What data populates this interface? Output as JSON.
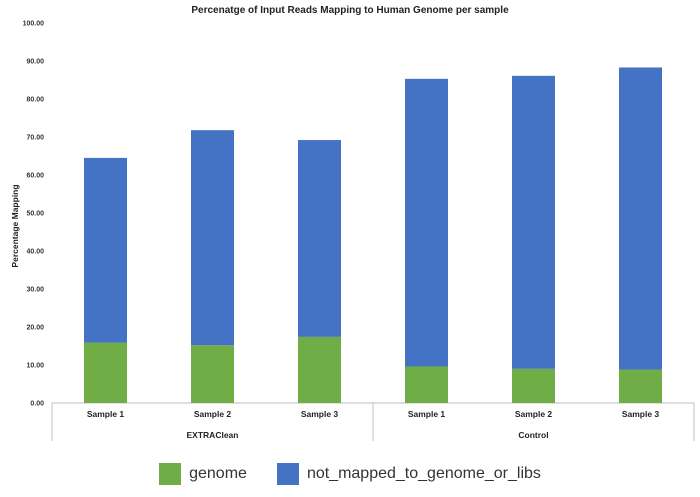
{
  "chart_data": {
    "type": "bar",
    "stacked": true,
    "title": "Percenatge of Input Reads Mapping to Human Genome per sample",
    "ylabel": "Percentage Mapping",
    "xlabel": "",
    "ylim": [
      0,
      100
    ],
    "yticks": [
      "0.00",
      "10.00",
      "20.00",
      "30.00",
      "40.00",
      "50.00",
      "60.00",
      "70.00",
      "80.00",
      "90.00",
      "100.00"
    ],
    "groups": [
      {
        "label": "EXTRAClean",
        "categories": [
          "Sample 1",
          "Sample 2",
          "Sample 3"
        ]
      },
      {
        "label": "Control",
        "categories": [
          "Sample 1",
          "Sample 2",
          "Sample 3"
        ]
      }
    ],
    "categories": [
      "Sample 1",
      "Sample 2",
      "Sample 3",
      "Sample 1",
      "Sample 2",
      "Sample 3"
    ],
    "series": [
      {
        "name": "genome",
        "color": "#70ad47",
        "values": [
          15.9,
          15.2,
          17.4,
          9.6,
          9.0,
          8.8
        ]
      },
      {
        "name": "not_mapped_to_genome_or_libs",
        "color": "#4472c4",
        "values": [
          48.6,
          56.6,
          51.8,
          75.7,
          77.1,
          79.5
        ]
      }
    ],
    "grid": false,
    "legend_position": "bottom"
  }
}
